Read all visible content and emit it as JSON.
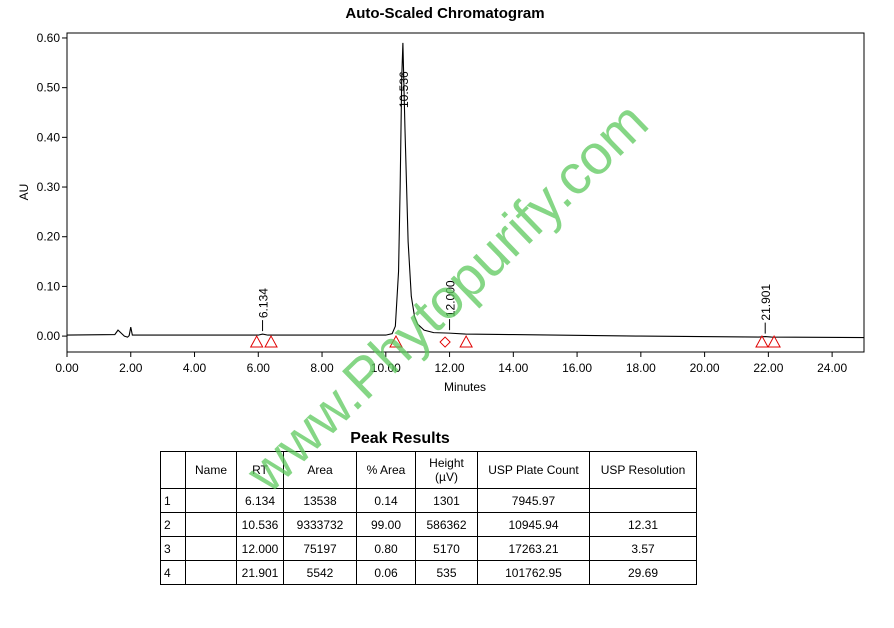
{
  "chart_data": {
    "type": "line",
    "title": "Auto-Scaled Chromatogram",
    "x_label": "Minutes",
    "y_label": "AU",
    "color": "#000000",
    "x": [
      0,
      1.5,
      1.6,
      1.7,
      1.8,
      1.9,
      1.95,
      2.0,
      2.05,
      2.1,
      4,
      6.0,
      6.134,
      6.3,
      8,
      10.0,
      10.2,
      10.3,
      10.4,
      10.45,
      10.5,
      10.536,
      10.6,
      10.7,
      10.8,
      10.9,
      11.0,
      11.2,
      11.5,
      12.0,
      12.5,
      14,
      18,
      21.7,
      21.901,
      22.1,
      25
    ],
    "values": [
      0.002,
      0.003,
      0.012,
      0.006,
      0.0,
      -0.002,
      0.001,
      0.018,
      0.002,
      0.002,
      0.002,
      0.002,
      0.004,
      0.002,
      0.002,
      0.002,
      0.005,
      0.02,
      0.13,
      0.3,
      0.52,
      0.59,
      0.42,
      0.19,
      0.08,
      0.04,
      0.024,
      0.012,
      0.007,
      0.006,
      0.004,
      0.003,
      0.0,
      -0.002,
      -0.001,
      -0.002,
      -0.003
    ],
    "xlim": [
      0,
      25
    ],
    "ylim": [
      -0.032,
      0.61
    ],
    "xticks": [
      {
        "value": 0,
        "label": "0.00"
      },
      {
        "value": 2,
        "label": "2.00"
      },
      {
        "value": 4,
        "label": "4.00"
      },
      {
        "value": 6,
        "label": "6.00"
      },
      {
        "value": 8,
        "label": "8.00"
      },
      {
        "value": 10,
        "label": "10.00"
      },
      {
        "value": 12,
        "label": "12.00"
      },
      {
        "value": 14,
        "label": "14.00"
      },
      {
        "value": 16,
        "label": "16.00"
      },
      {
        "value": 18,
        "label": "18.00"
      },
      {
        "value": 20,
        "label": "20.00"
      },
      {
        "value": 22,
        "label": "22.00"
      },
      {
        "value": 24,
        "label": "24.00"
      }
    ],
    "yticks": [
      {
        "value": 0,
        "label": "0.00"
      },
      {
        "value": 0.1,
        "label": "0.10"
      },
      {
        "value": 0.2,
        "label": "0.20"
      },
      {
        "value": 0.3,
        "label": "0.30"
      },
      {
        "value": 0.4,
        "label": "0.40"
      },
      {
        "value": 0.5,
        "label": "0.50"
      },
      {
        "value": 0.6,
        "label": "0.60"
      }
    ],
    "peaks": [
      {
        "value": 6.134,
        "label": "6.134"
      },
      {
        "value": 10.536,
        "label": "10.536"
      },
      {
        "value": 12.0,
        "label": "12.000"
      },
      {
        "value": 21.901,
        "label": "21.901"
      }
    ],
    "markers": {
      "color": "#e00000",
      "x": [
        5.95,
        6.4,
        10.32,
        11.86,
        12.52,
        21.8,
        22.18
      ],
      "values": [
        -0.012,
        -0.012,
        -0.012,
        -0.012,
        -0.012,
        -0.012,
        -0.012
      ],
      "shapes": [
        "triangle",
        "triangle",
        "triangle",
        "diamond",
        "triangle",
        "triangle",
        "triangle"
      ]
    }
  },
  "table": {
    "title": "Peak Results",
    "columns": [
      null,
      "Name",
      "RT",
      "Area",
      "% Area",
      "Height (µV)",
      "USP Plate Count",
      "USP Resolution"
    ],
    "rows": [
      [
        "1",
        null,
        "6.134",
        "13538",
        "0.14",
        "1301",
        "7945.97",
        null
      ],
      [
        "2",
        null,
        "10.536",
        "9333732",
        "99.00",
        "586362",
        "10945.94",
        "12.31"
      ],
      [
        "3",
        null,
        "12.000",
        "75197",
        "0.80",
        "5170",
        "17263.21",
        "3.57"
      ],
      [
        "4",
        null,
        "21.901",
        "5542",
        "0.06",
        "535",
        "101762.95",
        "29.69"
      ]
    ]
  },
  "watermark": "www.Phytopurify.com"
}
